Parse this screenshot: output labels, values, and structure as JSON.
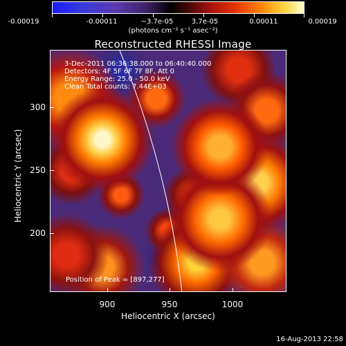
{
  "colorbar": {
    "tick_labels": [
      "-0.00019",
      "-0.00011",
      "−3.7e-05",
      "3.7e-05",
      "0.00011",
      "0.00019"
    ],
    "units": "(photons cm⁻² s⁻¹ asec⁻²)"
  },
  "plot": {
    "title": "Reconstructed RHESSI Image",
    "info_lines": [
      " 3-Dec-2011 06:36:38.000 to 06:40:40.000",
      "Detectors: 4F 5F 6F 7F 8F, Att 0",
      "Energy Range: 25.0 - 50.0 keV",
      "Clean    Total counts: 7.44E+03"
    ],
    "peak_text": "Position of Peak = [897,277]",
    "x_axis": {
      "label": "Heliocentric X (arcsec)",
      "ticks": [
        "900",
        "950",
        "1000"
      ],
      "range": [
        860,
        1045
      ]
    },
    "y_axis": {
      "label": "Heliocentric Y (arcsec)",
      "ticks": [
        "300",
        "250",
        "200"
      ],
      "range": [
        160,
        335
      ]
    },
    "colors": {
      "background": "#000000",
      "limb_line": "#ffffff"
    }
  },
  "footer": {
    "date": "16-Aug-2013 22:58"
  }
}
